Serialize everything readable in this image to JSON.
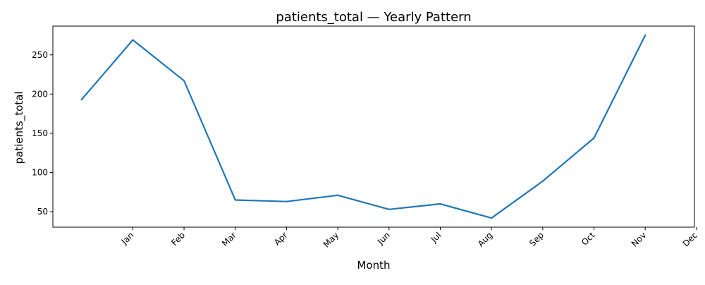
{
  "chart_data": {
    "type": "line",
    "title": "patients_total — Yearly Pattern",
    "xlabel": "Month",
    "ylabel": "patients_total",
    "x_tick_labels": [
      "Jan",
      "Feb",
      "Mar",
      "Apr",
      "May",
      "Jun",
      "Jul",
      "Aug",
      "Sep",
      "Oct",
      "Nov",
      "Dec"
    ],
    "series": [
      {
        "color": "#1f77b4",
        "points": [
          {
            "month": 0,
            "value": 193
          },
          {
            "month": 1,
            "value": 269
          },
          {
            "month": 2,
            "value": 217
          },
          {
            "month": 3,
            "value": 65
          },
          {
            "month": 4,
            "value": 63
          },
          {
            "month": 5,
            "value": 71
          },
          {
            "month": 6,
            "value": 53
          },
          {
            "month": 7,
            "value": 60
          },
          {
            "month": 8,
            "value": 42
          },
          {
            "month": 9,
            "value": 89
          },
          {
            "month": 10,
            "value": 144
          },
          {
            "month": 11,
            "value": 275
          }
        ]
      }
    ],
    "y_ticks": [
      50,
      100,
      150,
      200,
      250
    ],
    "xlim": [
      -0.56,
      11.96
    ],
    "ylim": [
      30.35,
      286.65
    ],
    "grid": false,
    "legend": "none"
  }
}
